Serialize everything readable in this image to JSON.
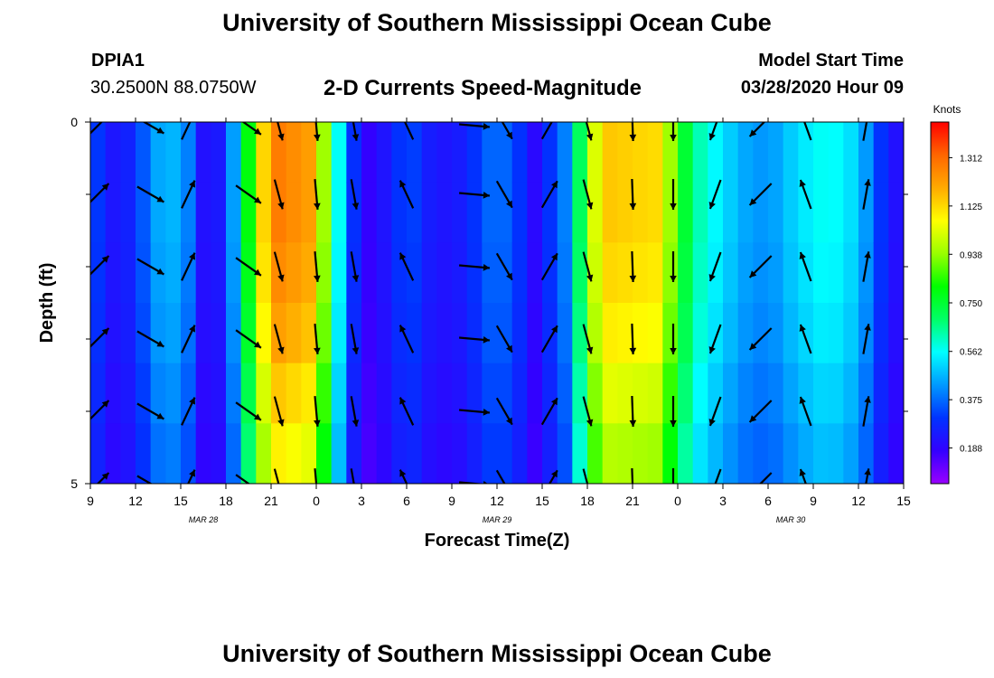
{
  "header": {
    "title": "University of Southern Mississippi Ocean Cube",
    "station_id": "DPIA1",
    "station_coords": "30.2500N 88.0750W",
    "subtitle": "2-D Currents Speed-Magnitude",
    "model_start_label": "Model Start Time",
    "model_start_value": "03/28/2020 Hour 09"
  },
  "footer": {
    "title": "University of Southern Mississippi Ocean Cube"
  },
  "chart_data": {
    "type": "heatmap",
    "title": "2-D Currents Speed-Magnitude",
    "xlabel": "Forecast Time(Z)",
    "ylabel": "Depth (ft)",
    "x_tick_labels": [
      "9",
      "12",
      "15",
      "18",
      "21",
      "0",
      "3",
      "6",
      "9",
      "12",
      "15",
      "18",
      "21",
      "0",
      "3",
      "6",
      "9",
      "12",
      "15"
    ],
    "x_range_hours": [
      0,
      54
    ],
    "date_labels": [
      {
        "text": "MAR 28",
        "hour": 7.5
      },
      {
        "text": "MAR 29",
        "hour": 27
      },
      {
        "text": "MAR 30",
        "hour": 46.5
      }
    ],
    "y_tick_labels": [
      "0",
      "5"
    ],
    "ylim": [
      0,
      5
    ],
    "y_minor_ticks": [
      1,
      2,
      3,
      4
    ],
    "colorbar": {
      "label": "Knots",
      "ticks": [
        "1.312",
        "1.125",
        "0.938",
        "0.750",
        "0.562",
        "0.375",
        "0.188"
      ],
      "vmin": 0.05,
      "vmax": 1.45,
      "stops": [
        "#9900ff",
        "#3300ff",
        "#0033ff",
        "#0099ff",
        "#00ffff",
        "#00ff66",
        "#00ff00",
        "#99ff00",
        "#ffff00",
        "#ffaa00",
        "#ff6600",
        "#ff0000"
      ]
    },
    "speed_profile": [
      {
        "h": 0.0,
        "v": 0.45
      },
      {
        "h": 0.7,
        "v": 0.25
      },
      {
        "h": 2.0,
        "v": 0.22
      },
      {
        "h": 3.5,
        "v": 0.35
      },
      {
        "h": 5.0,
        "v": 0.5
      },
      {
        "h": 6.5,
        "v": 0.4
      },
      {
        "h": 7.5,
        "v": 0.22
      },
      {
        "h": 9.0,
        "v": 0.25
      },
      {
        "h": 9.8,
        "v": 0.55
      },
      {
        "h": 10.5,
        "v": 0.8
      },
      {
        "h": 11.3,
        "v": 1.1
      },
      {
        "h": 12.5,
        "v": 1.28
      },
      {
        "h": 14.5,
        "v": 1.22
      },
      {
        "h": 15.5,
        "v": 0.95
      },
      {
        "h": 16.3,
        "v": 0.65
      },
      {
        "h": 17.0,
        "v": 0.35
      },
      {
        "h": 18.5,
        "v": 0.18
      },
      {
        "h": 20.0,
        "v": 0.25
      },
      {
        "h": 21.0,
        "v": 0.35
      },
      {
        "h": 22.5,
        "v": 0.25
      },
      {
        "h": 24.0,
        "v": 0.22
      },
      {
        "h": 25.5,
        "v": 0.3
      },
      {
        "h": 27.0,
        "v": 0.4
      },
      {
        "h": 28.5,
        "v": 0.3
      },
      {
        "h": 29.5,
        "v": 0.2
      },
      {
        "h": 31.5,
        "v": 0.4
      },
      {
        "h": 32.5,
        "v": 0.7
      },
      {
        "h": 33.3,
        "v": 1.0
      },
      {
        "h": 34.5,
        "v": 1.15
      },
      {
        "h": 37.5,
        "v": 1.12
      },
      {
        "h": 38.5,
        "v": 0.95
      },
      {
        "h": 39.5,
        "v": 0.75
      },
      {
        "h": 40.5,
        "v": 0.62
      },
      {
        "h": 42.0,
        "v": 0.52
      },
      {
        "h": 43.5,
        "v": 0.45
      },
      {
        "h": 45.0,
        "v": 0.42
      },
      {
        "h": 47.0,
        "v": 0.52
      },
      {
        "h": 49.0,
        "v": 0.58
      },
      {
        "h": 51.0,
        "v": 0.5
      },
      {
        "h": 52.5,
        "v": 0.3
      },
      {
        "h": 54.0,
        "v": 0.18
      }
    ],
    "depth_factor": [
      1.0,
      1.0,
      0.98,
      0.95,
      0.9,
      0.85
    ],
    "vectors": {
      "depth_rows": [
        0.05,
        1.0,
        2.0,
        3.0,
        4.0,
        5.0
      ],
      "columns": [
        {
          "hour": 0.5,
          "dir": 45
        },
        {
          "hour": 4.0,
          "dir": 120
        },
        {
          "hour": 6.5,
          "dir": 25
        },
        {
          "hour": 10.5,
          "dir": 125
        },
        {
          "hour": 12.5,
          "dir": 165
        },
        {
          "hour": 15.0,
          "dir": 175
        },
        {
          "hour": 17.5,
          "dir": 170
        },
        {
          "hour": 21.0,
          "dir": 335
        },
        {
          "hour": 25.5,
          "dir": 95
        },
        {
          "hour": 27.5,
          "dir": 150
        },
        {
          "hour": 30.5,
          "dir": 30
        },
        {
          "hour": 33.0,
          "dir": 165
        },
        {
          "hour": 36.0,
          "dir": 178
        },
        {
          "hour": 38.7,
          "dir": 180
        },
        {
          "hour": 41.5,
          "dir": 200
        },
        {
          "hour": 44.5,
          "dir": 225
        },
        {
          "hour": 47.5,
          "dir": 340
        },
        {
          "hour": 51.5,
          "dir": 10
        }
      ]
    }
  }
}
